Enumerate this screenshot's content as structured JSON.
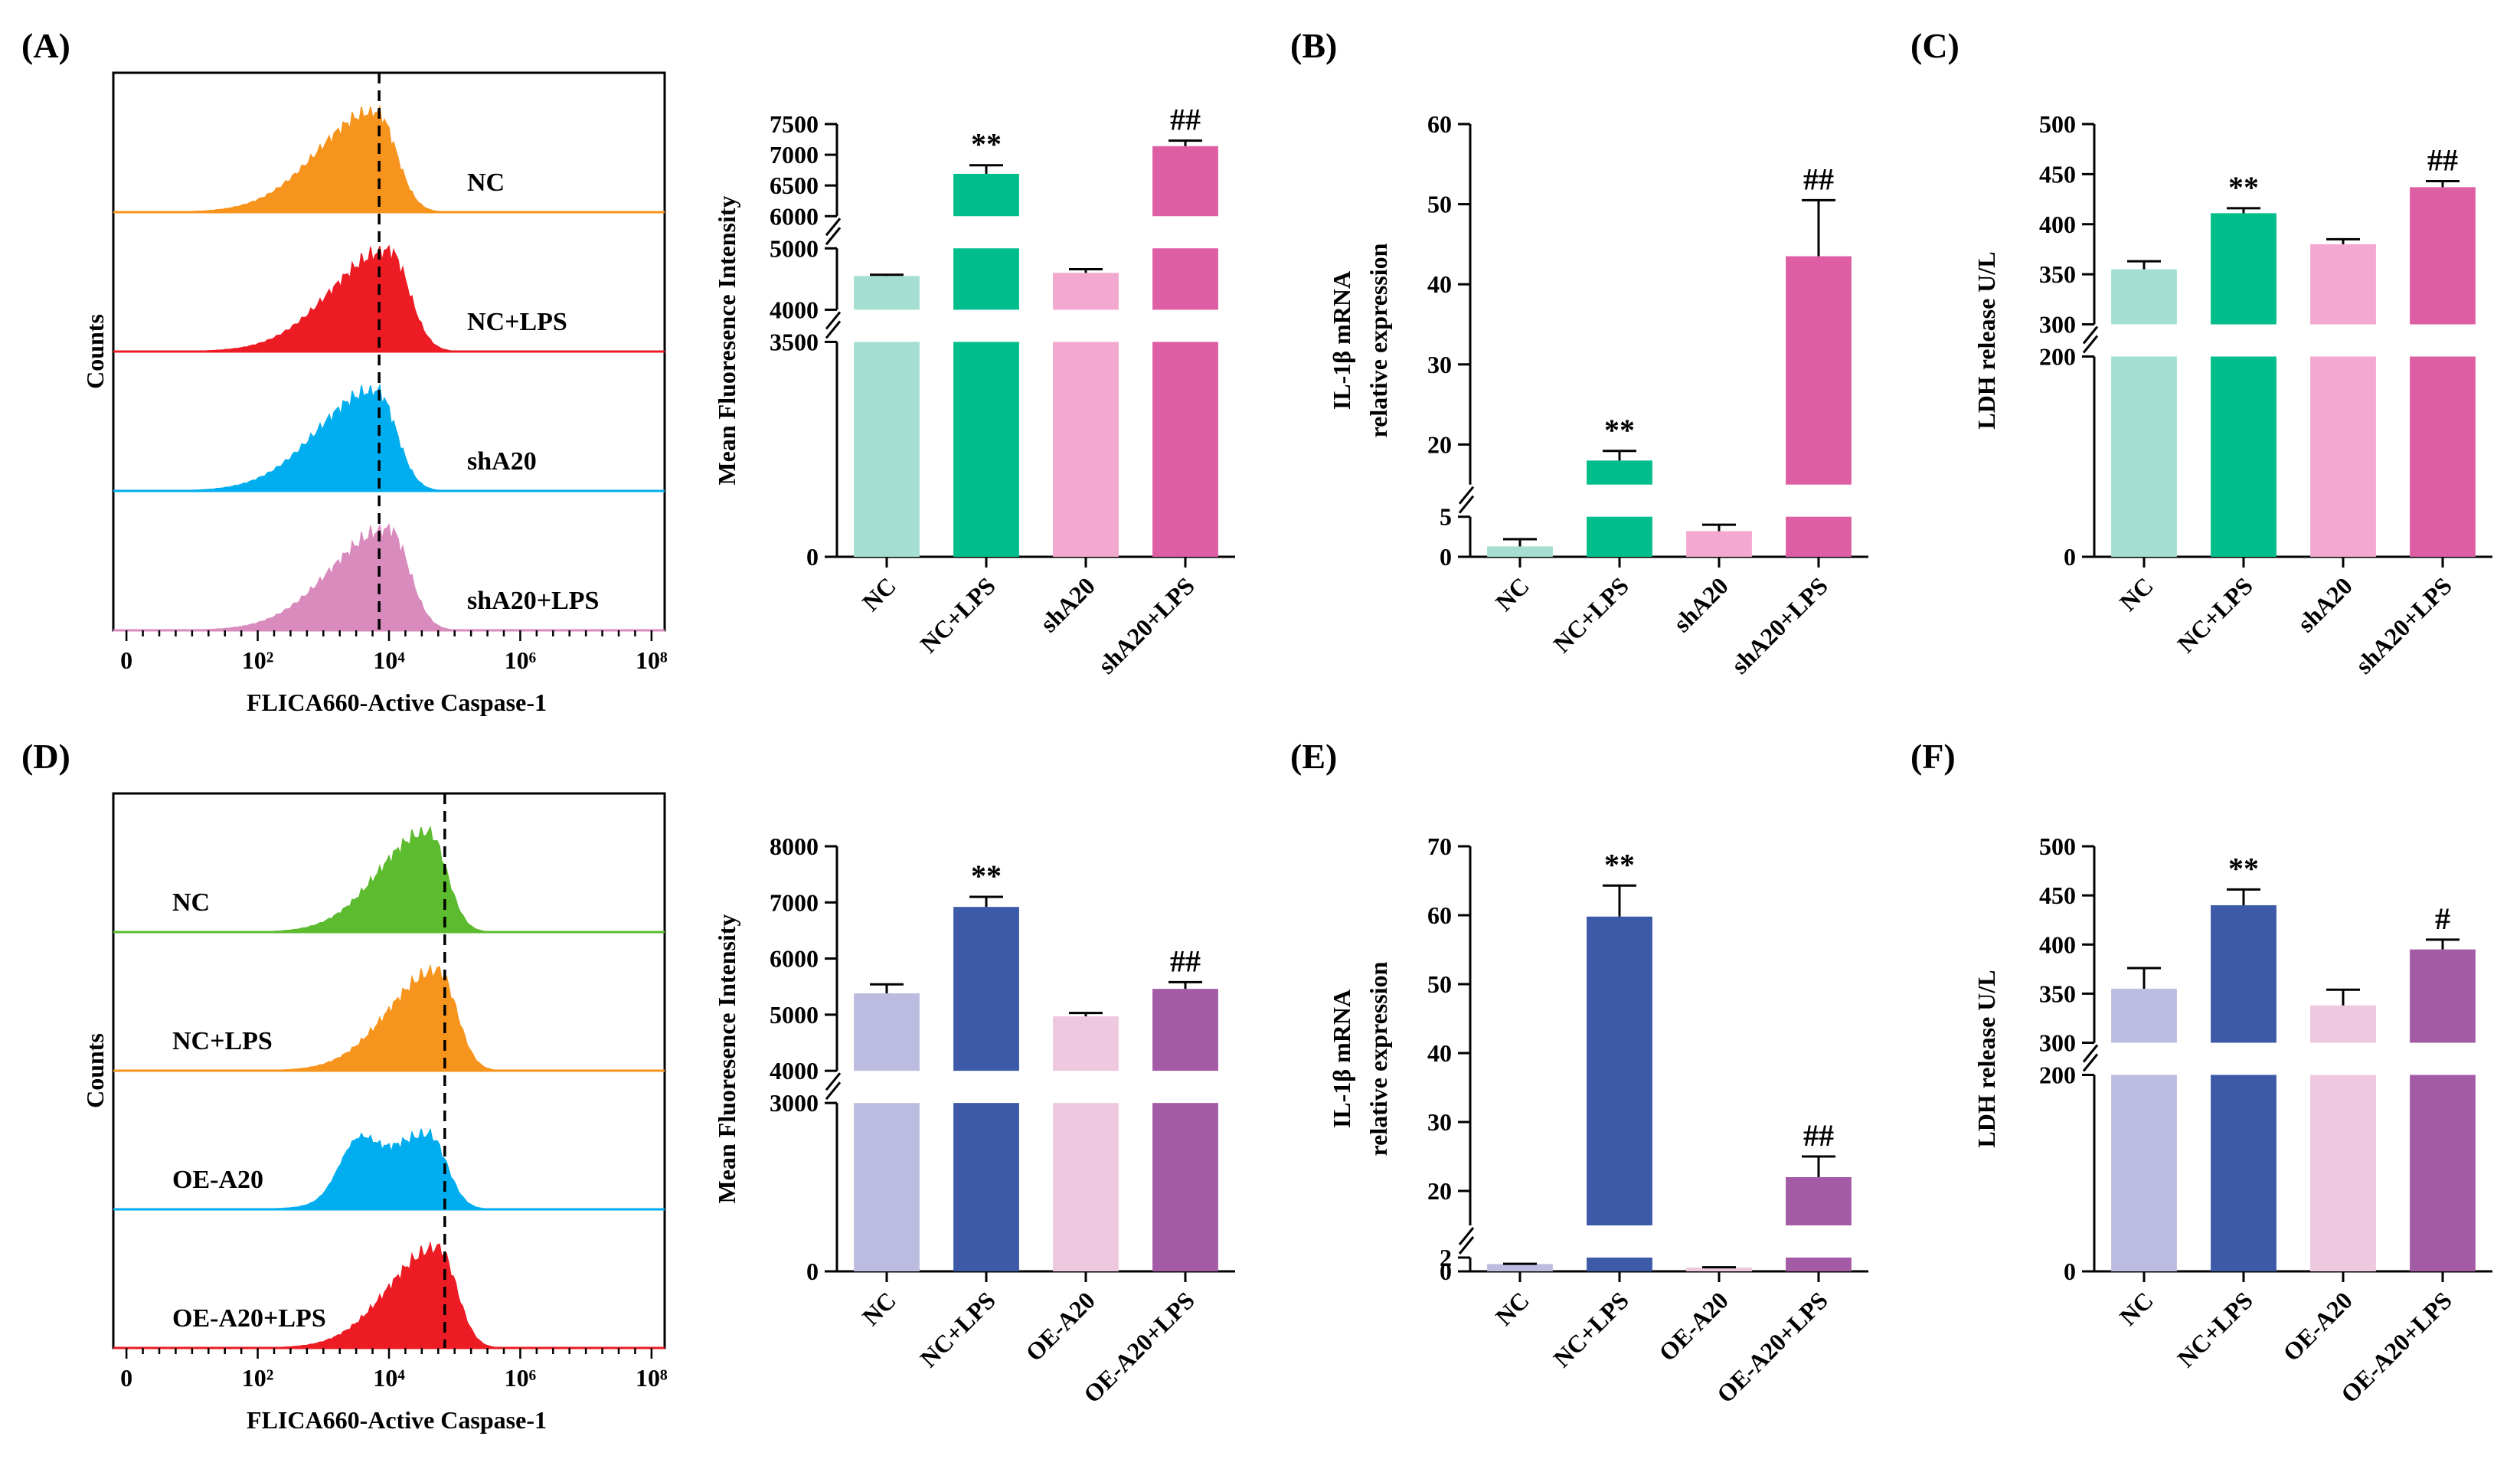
{
  "chart_data": [
    {
      "panel": "(A)",
      "type": "flow-histogram",
      "ylabel": "Counts",
      "xlabel": "FLICA660-Active Caspase-1",
      "xticks": [
        "0",
        "10²",
        "10⁴",
        "10⁶",
        "10⁸"
      ],
      "series": [
        {
          "name": "NC",
          "color": "#F7941D",
          "peak_log10": 3.8
        },
        {
          "name": "NC+LPS",
          "color": "#ED1C24",
          "peak_log10": 4.0
        },
        {
          "name": "shA20",
          "color": "#00AEEF",
          "peak_log10": 3.8
        },
        {
          "name": "shA20+LPS",
          "color": "#D98BBE",
          "peak_log10": 4.0
        }
      ],
      "dashed_line_log10": 3.85
    },
    {
      "panel": "(A)",
      "type": "bar",
      "ylabel": "Mean Fluoresence Intensity",
      "categories": [
        "NC",
        "NC+LPS",
        "shA20",
        "shA20+LPS"
      ],
      "values": [
        4550,
        6690,
        4600,
        7140
      ],
      "errors": [
        20,
        140,
        60,
        90
      ],
      "colors": [
        "#A5DFD1",
        "#00BE8C",
        "#F2A8CF",
        "#DE5EA5"
      ],
      "annotations": [
        "",
        "**",
        "",
        "##"
      ],
      "broken_axis": {
        "segments": [
          {
            "range": [
              0,
              3500
            ],
            "ticks": [
              "0",
              "3500"
            ]
          },
          {
            "range": [
              4000,
              5000
            ],
            "ticks": [
              "4000",
              "5000"
            ]
          },
          {
            "range": [
              6000,
              7500
            ],
            "ticks": [
              "6000",
              "6500",
              "7000",
              "7500"
            ]
          }
        ]
      }
    },
    {
      "panel": "(B)",
      "type": "bar",
      "ylabel": [
        "IL-1β mRNA",
        "relative expression"
      ],
      "categories": [
        "NC",
        "NC+LPS",
        "shA20",
        "shA20+LPS"
      ],
      "values": [
        1.3,
        18.0,
        3.2,
        43.5
      ],
      "errors": [
        0.9,
        1.2,
        0.8,
        7.0
      ],
      "colors": [
        "#A5DFD1",
        "#00BE8C",
        "#F2A8CF",
        "#DE5EA5"
      ],
      "annotations": [
        "",
        "**",
        "",
        "##"
      ],
      "broken_axis": {
        "segments": [
          {
            "range": [
              0,
              5
            ],
            "ticks": [
              "0",
              "5"
            ]
          },
          {
            "range": [
              15,
              60
            ],
            "ticks": [
              "20",
              "30",
              "40",
              "50",
              "60"
            ]
          }
        ]
      }
    },
    {
      "panel": "(C)",
      "type": "bar",
      "ylabel": "LDH release U/L",
      "categories": [
        "NC",
        "NC+LPS",
        "shA20",
        "shA20+LPS"
      ],
      "values": [
        355,
        411,
        380,
        437
      ],
      "errors": [
        8,
        5,
        5,
        6
      ],
      "colors": [
        "#A5DFD1",
        "#00BE8C",
        "#F2A8CF",
        "#DE5EA5"
      ],
      "annotations": [
        "",
        "**",
        "",
        "##"
      ],
      "broken_axis": {
        "segments": [
          {
            "range": [
              0,
              200
            ],
            "ticks": [
              "0",
              "200"
            ]
          },
          {
            "range": [
              300,
              500
            ],
            "ticks": [
              "300",
              "350",
              "400",
              "450",
              "500"
            ]
          }
        ]
      }
    },
    {
      "panel": "(D)",
      "type": "flow-histogram",
      "ylabel": "Counts",
      "xlabel": "FLICA660-Active Caspase-1",
      "xticks": [
        "0",
        "10²",
        "10⁴",
        "10⁶",
        "10⁸"
      ],
      "series": [
        {
          "name": "NC",
          "color": "#5DBB2F",
          "peak_log10": 4.6
        },
        {
          "name": "NC+LPS",
          "color": "#F7941D",
          "peak_log10": 4.75
        },
        {
          "name": "OE-A20",
          "color": "#00AEEF",
          "peak_log10": 4.6
        },
        {
          "name": "OE-A20+LPS",
          "color": "#ED1C24",
          "peak_log10": 4.75
        }
      ],
      "dashed_line_log10": 4.85
    },
    {
      "panel": "(D)",
      "type": "bar",
      "ylabel": "Mean Fluoresence Intensity",
      "categories": [
        "NC",
        "NC+LPS",
        "OE-A20",
        "OE-A20+LPS"
      ],
      "values": [
        5380,
        6920,
        4970,
        5460
      ],
      "errors": [
        160,
        180,
        60,
        120
      ],
      "colors": [
        "#BCBCE0",
        "#3D5AA8",
        "#EEC8DF",
        "#A45BA6"
      ],
      "annotations": [
        "",
        "**",
        "",
        "##"
      ],
      "broken_axis": {
        "segments": [
          {
            "range": [
              0,
              3000
            ],
            "ticks": [
              "0",
              "3000"
            ]
          },
          {
            "range": [
              4000,
              8000
            ],
            "ticks": [
              "4000",
              "5000",
              "6000",
              "7000",
              "8000"
            ]
          }
        ]
      }
    },
    {
      "panel": "(E)",
      "type": "bar",
      "ylabel": [
        "IL-1β mRNA",
        "relative expression"
      ],
      "categories": [
        "NC",
        "NC+LPS",
        "OE-A20",
        "OE-A20+LPS"
      ],
      "values": [
        1.05,
        59.8,
        0.55,
        22.0
      ],
      "errors": [
        0.05,
        4.5,
        0.05,
        3.0
      ],
      "colors": [
        "#BCBCE0",
        "#3D5AA8",
        "#EEC8DF",
        "#A45BA6"
      ],
      "annotations": [
        "",
        "**",
        "",
        "##"
      ],
      "broken_axis": {
        "segments": [
          {
            "range": [
              0,
              2
            ],
            "ticks": [
              "0",
              "2"
            ]
          },
          {
            "range": [
              15,
              70
            ],
            "ticks": [
              "20",
              "30",
              "40",
              "50",
              "60",
              "70"
            ]
          }
        ]
      }
    },
    {
      "panel": "(F)",
      "type": "bar",
      "ylabel": "LDH release U/L",
      "categories": [
        "NC",
        "NC+LPS",
        "OE-A20",
        "OE-A20+LPS"
      ],
      "values": [
        355,
        440,
        338,
        395
      ],
      "errors": [
        21,
        16,
        16,
        10
      ],
      "colors": [
        "#BCBCE0",
        "#3D5AA8",
        "#EEC8DF",
        "#A45BA6"
      ],
      "annotations": [
        "",
        "**",
        "",
        "#"
      ],
      "broken_axis": {
        "segments": [
          {
            "range": [
              0,
              200
            ],
            "ticks": [
              "0",
              "200"
            ]
          },
          {
            "range": [
              300,
              500
            ],
            "ticks": [
              "300",
              "350",
              "400",
              "450",
              "500"
            ]
          }
        ]
      }
    }
  ]
}
